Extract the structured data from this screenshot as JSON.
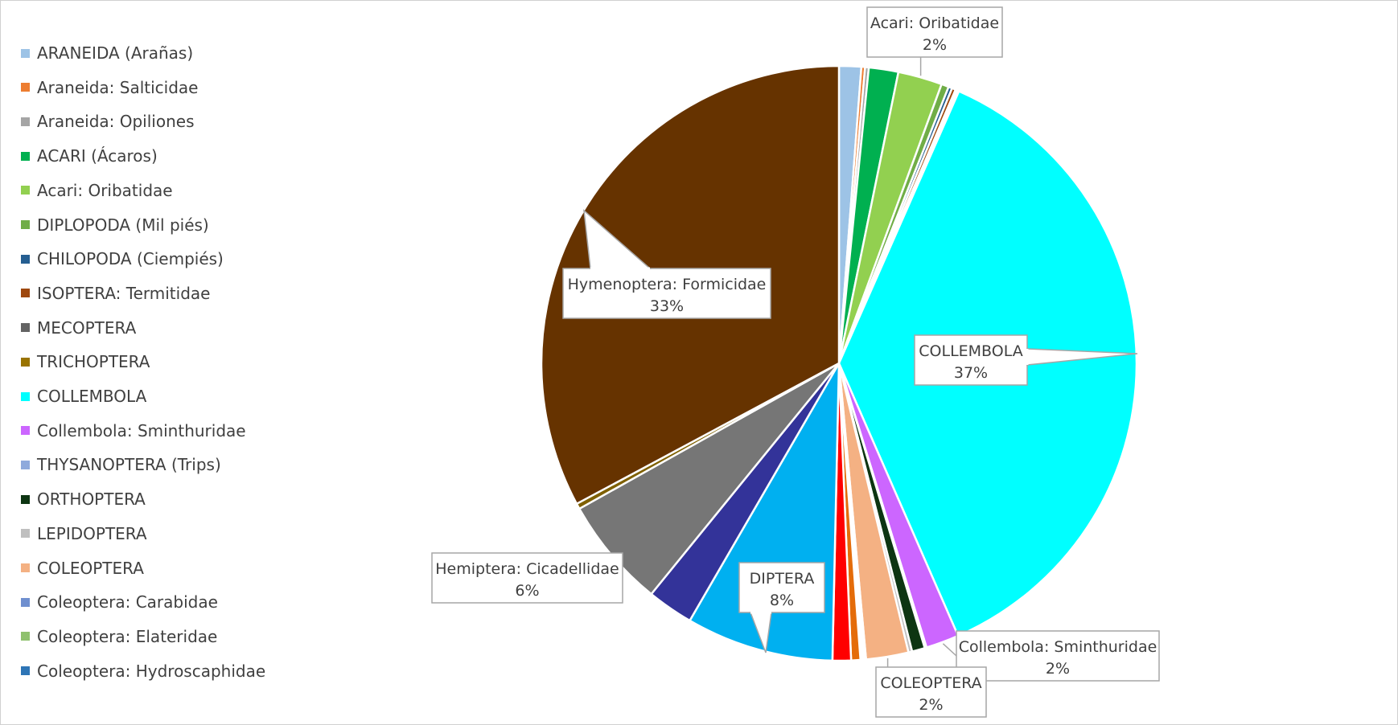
{
  "chart_data": {
    "type": "pie",
    "title": "",
    "legend_position": "left",
    "slices": [
      {
        "name": "ARANEIDA (Arañas)",
        "value": 1.2,
        "color": "#9dc3e6"
      },
      {
        "name": "Araneida: Salticidae",
        "value": 0.2,
        "color": "#ed7d31"
      },
      {
        "name": "Araneida: Opiliones",
        "value": 0.2,
        "color": "#a5a5a5"
      },
      {
        "name": "ACARI (Ácaros)",
        "value": 1.6,
        "color": "#00b050"
      },
      {
        "name": "Acari: Oribatidae",
        "value": 2.4,
        "color": "#92d050"
      },
      {
        "name": "DIPLOPODA (Mil piés)",
        "value": 0.4,
        "color": "#70ad47"
      },
      {
        "name": "CHILOPODA (Ciempiés)",
        "value": 0.2,
        "color": "#255e91"
      },
      {
        "name": "ISOPTERA: Termitidae",
        "value": 0.2,
        "color": "#9e480e"
      },
      {
        "name": "MECOPTERA",
        "value": 0.1,
        "color": "#636363"
      },
      {
        "name": "TRICHOPTERA",
        "value": 0.1,
        "color": "#997300"
      },
      {
        "name": "COLLEMBOLA",
        "value": 36.8,
        "color": "#00ffff"
      },
      {
        "name": "Collembola: Sminthuridae",
        "value": 1.8,
        "color": "#cc66ff"
      },
      {
        "name": "THYSANOPTERA (Trips)",
        "value": 0.1,
        "color": "#8faadc"
      },
      {
        "name": "ORTHOPTERA",
        "value": 0.7,
        "color": "#0d3512"
      },
      {
        "name": "LEPIDOPTERA",
        "value": 0.2,
        "color": "#bfbfbf"
      },
      {
        "name": "COLEOPTERA",
        "value": 2.3,
        "color": "#f4b183"
      },
      {
        "name": "Coleoptera: Carabidae",
        "value": 0.1,
        "color": "#6f8fcf"
      },
      {
        "name": "Coleoptera: Elateridae",
        "value": 0.1,
        "color": "#8fc16e"
      },
      {
        "name": "Coleoptera: Hydroscaphidae",
        "value": 0.1,
        "color": "#2e75b6"
      },
      {
        "name": "",
        "value": 0.5,
        "color": "#e46c0a"
      },
      {
        "name": "",
        "value": 1.0,
        "color": "#ff0000"
      },
      {
        "name": "DIPTERA",
        "value": 8.0,
        "color": "#00b0f0"
      },
      {
        "name": "",
        "value": 2.5,
        "color": "#333399"
      },
      {
        "name": "Hemiptera: Cicadellidae",
        "value": 6.0,
        "color": "#767676"
      },
      {
        "name": "",
        "value": 0.3,
        "color": "#7f6000"
      },
      {
        "name": "Hymenoptera: Formicidae",
        "value": 32.8,
        "color": "#663300"
      }
    ],
    "legend": [
      {
        "label": "ARANEIDA (Arañas)",
        "color": "#9dc3e6"
      },
      {
        "label": "Araneida: Salticidae",
        "color": "#ed7d31"
      },
      {
        "label": "Araneida: Opiliones",
        "color": "#a5a5a5"
      },
      {
        "label": "ACARI (Ácaros)",
        "color": "#00b050"
      },
      {
        "label": "Acari: Oribatidae",
        "color": "#92d050"
      },
      {
        "label": "DIPLOPODA (Mil piés)",
        "color": "#70ad47"
      },
      {
        "label": "CHILOPODA (Ciempiés)",
        "color": "#255e91"
      },
      {
        "label": "ISOPTERA: Termitidae",
        "color": "#9e480e"
      },
      {
        "label": "MECOPTERA",
        "color": "#636363"
      },
      {
        "label": "TRICHOPTERA",
        "color": "#997300"
      },
      {
        "label": "COLLEMBOLA",
        "color": "#00ffff"
      },
      {
        "label": "Collembola: Sminthuridae",
        "color": "#cc66ff"
      },
      {
        "label": "THYSANOPTERA (Trips)",
        "color": "#8faadc"
      },
      {
        "label": "ORTHOPTERA",
        "color": "#0d3512"
      },
      {
        "label": "LEPIDOPTERA",
        "color": "#bfbfbf"
      },
      {
        "label": "COLEOPTERA",
        "color": "#f4b183"
      },
      {
        "label": "Coleoptera: Carabidae",
        "color": "#6f8fcf"
      },
      {
        "label": "Coleoptera: Elateridae",
        "color": "#8fc16e"
      },
      {
        "label": "Coleoptera: Hydroscaphidae",
        "color": "#2e75b6"
      }
    ],
    "data_labels": [
      {
        "name": "Acari: Oribatidae",
        "percent": "2%"
      },
      {
        "name": "COLLEMBOLA",
        "percent": "37%"
      },
      {
        "name": "Collembola: Sminthuridae",
        "percent": "2%"
      },
      {
        "name": "COLEOPTERA",
        "percent": "2%"
      },
      {
        "name": "DIPTERA",
        "percent": "8%"
      },
      {
        "name": "Hemiptera: Cicadellidae",
        "percent": "6%"
      },
      {
        "name": "Hymenoptera: Formicidae",
        "percent": "33%"
      }
    ]
  }
}
